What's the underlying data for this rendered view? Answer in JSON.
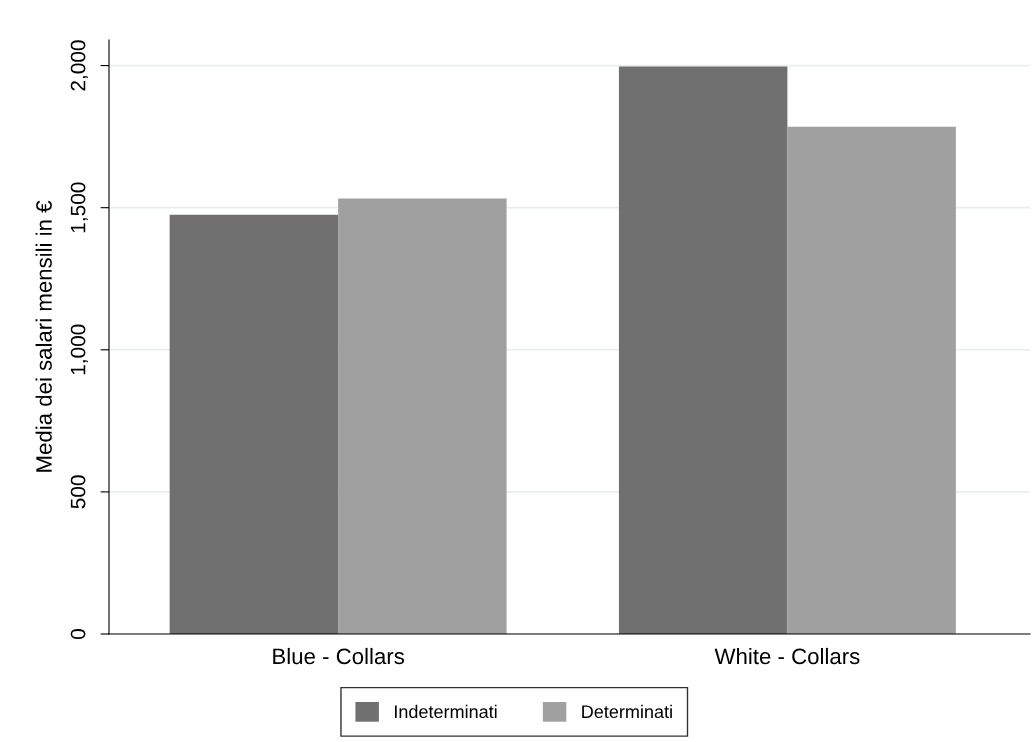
{
  "chart_data": {
    "type": "bar",
    "ylabel": "Media dei salari mensili in €",
    "categories": [
      "Blue - Collars",
      "White - Collars"
    ],
    "series": [
      {
        "name": "Indeterminati",
        "color": "#707070",
        "values": [
          1475,
          1997
        ]
      },
      {
        "name": "Determinati",
        "color": "#a0a0a0",
        "values": [
          1532,
          1785
        ]
      }
    ],
    "ylim": [
      0,
      2090
    ],
    "yticks": [
      {
        "value": 0,
        "label": "0"
      },
      {
        "value": 500,
        "label": "500"
      },
      {
        "value": 1000,
        "label": "1,000"
      },
      {
        "value": 1500,
        "label": "1,500"
      },
      {
        "value": 2000,
        "label": "2,000"
      }
    ],
    "grid": "y",
    "legend": "bottom"
  }
}
